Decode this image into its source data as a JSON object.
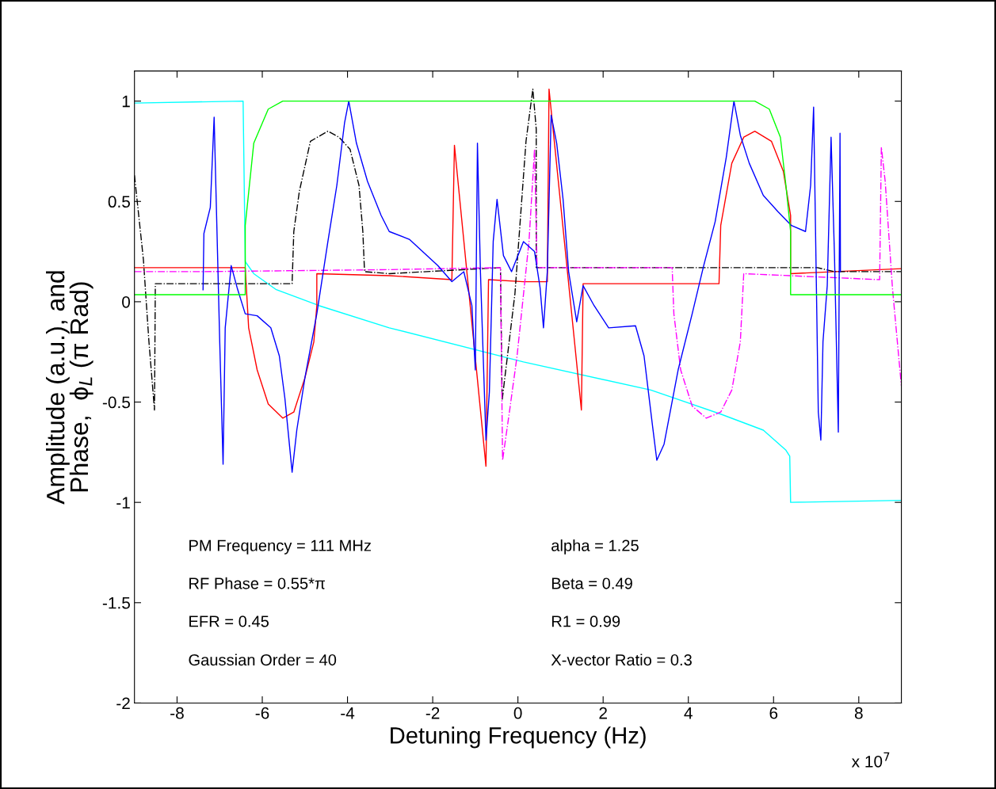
{
  "chart_data": {
    "type": "line",
    "xlabel": "Detuning Frequency (Hz)",
    "ylabel": "Amplitude (a.u.), and\nPhase,  ϕ$_{L}$ (π Rad)",
    "xlim": [
      -9,
      9
    ],
    "xticks": [
      -8,
      -6,
      -4,
      -2,
      0,
      2,
      4,
      6,
      8
    ],
    "ylim": [
      -2,
      1.15
    ],
    "yticks": [
      -2,
      -1.5,
      -1,
      -0.5,
      0,
      0.5,
      1
    ],
    "grid": false,
    "legend": false,
    "marker": "none",
    "annotations": [
      "PM Frequency = 111 MHz",
      "RF Phase = 0.55*π",
      "EFR = 0.45",
      "Gaussian Order = 40",
      "alpha = 1.25",
      "Beta = 0.49",
      "R1 = 0.99",
      "X-vector Ratio = 0.3",
      "x 10$^{7}$"
    ],
    "series": [
      {
        "color": "#00ffff",
        "line_style": "solid",
        "x": [
          -9,
          -6.45,
          -6.4,
          -6.2,
          -5.67,
          -4.66,
          -3.02,
          0.13,
          3.12,
          4.76,
          5.76,
          6.29,
          6.38,
          6.4,
          9
        ],
        "values": [
          0.99,
          1.0,
          0.2,
          0.14,
          0.06,
          -0.02,
          -0.13,
          -0.3,
          -0.44,
          -0.56,
          -0.64,
          -0.74,
          -0.77,
          -1.0,
          -0.99
        ]
      },
      {
        "color": "#00ff00",
        "line_style": "solid",
        "x": [
          -9,
          -6.4,
          -6.4,
          -6.2,
          -5.86,
          -5.52,
          5.56,
          5.9,
          6.16,
          6.29,
          6.4,
          6.4,
          9
        ],
        "values": [
          0.035,
          0.035,
          0.38,
          0.79,
          0.96,
          1.0,
          1.0,
          0.96,
          0.82,
          0.58,
          0.35,
          0.035,
          0.035
        ]
      },
      {
        "color": "#ff0000",
        "line_style": "solid",
        "x": [
          -9,
          -6.4,
          -6.32,
          -6.12,
          -5.86,
          -5.52,
          -5.26,
          -5.0,
          -4.79,
          -4.72,
          -4.72,
          -3.02,
          -1.55,
          -1.49,
          -0.75,
          -0.69,
          0.13,
          0.69,
          0.73,
          1.49,
          1.53,
          3.12,
          4.72,
          4.76,
          5.02,
          5.3,
          5.56,
          5.95,
          6.23,
          6.4,
          6.4,
          9
        ],
        "values": [
          0.17,
          0.17,
          -0.13,
          -0.34,
          -0.51,
          -0.58,
          -0.55,
          -0.38,
          -0.2,
          -0.02,
          0.14,
          0.13,
          0.11,
          0.78,
          -0.82,
          0.11,
          0.1,
          0.1,
          1.06,
          -0.54,
          0.09,
          0.09,
          0.09,
          0.38,
          0.69,
          0.82,
          0.85,
          0.8,
          0.65,
          0.43,
          0.14,
          0.165
        ]
      },
      {
        "color": "#000000",
        "line_style": "dashdot",
        "x": [
          -9,
          -8.79,
          -8.66,
          -8.53,
          -8.51,
          -5.3,
          -5.26,
          -5.13,
          -4.87,
          -4.46,
          -4.2,
          -3.94,
          -3.73,
          -3.64,
          -3.6,
          -3.02,
          -0.41,
          -0.37,
          -0.07,
          0.19,
          0.35,
          0.43,
          0.43,
          3.12,
          7.03,
          7.43,
          9
        ],
        "values": [
          0.63,
          0.21,
          -0.2,
          -0.54,
          0.09,
          0.09,
          0.35,
          0.55,
          0.8,
          0.85,
          0.82,
          0.76,
          0.58,
          0.35,
          0.15,
          0.14,
          0.17,
          -0.49,
          0.04,
          0.8,
          1.06,
          0.86,
          0.17,
          0.17,
          0.17,
          0.15,
          0.15
        ]
      },
      {
        "color": "#ff00ff",
        "line_style": "dashdot",
        "x": [
          -9,
          -7.4,
          -3.02,
          -0.41,
          -0.36,
          -0.2,
          -0.02,
          0.26,
          0.39,
          0.45,
          3.62,
          3.66,
          3.82,
          4.09,
          4.42,
          4.76,
          5.02,
          5.22,
          5.3,
          8.49,
          8.53,
          8.62,
          8.79,
          9.0
        ],
        "values": [
          0.15,
          0.15,
          0.16,
          0.17,
          -0.79,
          -0.55,
          -0.27,
          0.3,
          0.76,
          0.17,
          0.17,
          -0.06,
          -0.34,
          -0.52,
          -0.58,
          -0.55,
          -0.44,
          -0.2,
          0.14,
          0.11,
          0.77,
          0.6,
          0.07,
          -0.42
        ]
      },
      {
        "color": "#0000ff",
        "line_style": "solid",
        "x": [
          -7.39,
          -7.37,
          -7.22,
          -7.13,
          -7.05,
          -7.0,
          -6.92,
          -6.87,
          -6.73,
          -6.59,
          -6.4,
          -6.12,
          -5.8,
          -5.6,
          -5.47,
          -5.35,
          -5.3,
          -5.19,
          -5.0,
          -4.72,
          -4.46,
          -4.25,
          -4.07,
          -3.97,
          -3.79,
          -3.53,
          -3.21,
          -3.02,
          -2.54,
          -1.88,
          -1.55,
          -1.27,
          -1.08,
          -1.0,
          -0.95,
          -0.88,
          -0.75,
          -0.67,
          -0.58,
          -0.49,
          -0.34,
          -0.15,
          0.13,
          0.39,
          0.52,
          0.6,
          0.69,
          0.78,
          0.91,
          1.06,
          1.19,
          1.38,
          1.53,
          1.79,
          2.13,
          2.76,
          2.96,
          3.16,
          3.26,
          3.43,
          3.76,
          4.09,
          4.36,
          4.63,
          4.89,
          5.07,
          5.22,
          5.43,
          5.76,
          6.1,
          6.42,
          6.75,
          6.87,
          6.94,
          7.0,
          7.05,
          7.11,
          7.16,
          7.26,
          7.35,
          7.43,
          7.52,
          7.56,
          7.57
        ],
        "values": [
          0.06,
          0.34,
          0.47,
          0.92,
          0.24,
          -0.19,
          -0.81,
          -0.13,
          0.18,
          0.07,
          -0.06,
          -0.07,
          -0.13,
          -0.27,
          -0.48,
          -0.74,
          -0.85,
          -0.64,
          -0.38,
          -0.06,
          0.3,
          0.58,
          0.89,
          1.0,
          0.79,
          0.6,
          0.43,
          0.35,
          0.31,
          0.18,
          0.1,
          0.15,
          -0.02,
          -0.34,
          0.79,
          0.15,
          -0.69,
          -0.45,
          0.3,
          0.51,
          0.23,
          0.15,
          0.3,
          0.25,
          0.07,
          -0.13,
          0.15,
          0.93,
          0.79,
          0.51,
          0.15,
          -0.1,
          0.08,
          -0.02,
          -0.13,
          -0.12,
          -0.27,
          -0.62,
          -0.79,
          -0.71,
          -0.34,
          -0.06,
          0.18,
          0.4,
          0.72,
          1.0,
          0.83,
          0.69,
          0.53,
          0.45,
          0.38,
          0.35,
          0.58,
          0.97,
          0.15,
          -0.55,
          -0.69,
          -0.2,
          0.08,
          0.82,
          0.23,
          -0.65,
          0.84,
          0.15
        ]
      }
    ]
  }
}
